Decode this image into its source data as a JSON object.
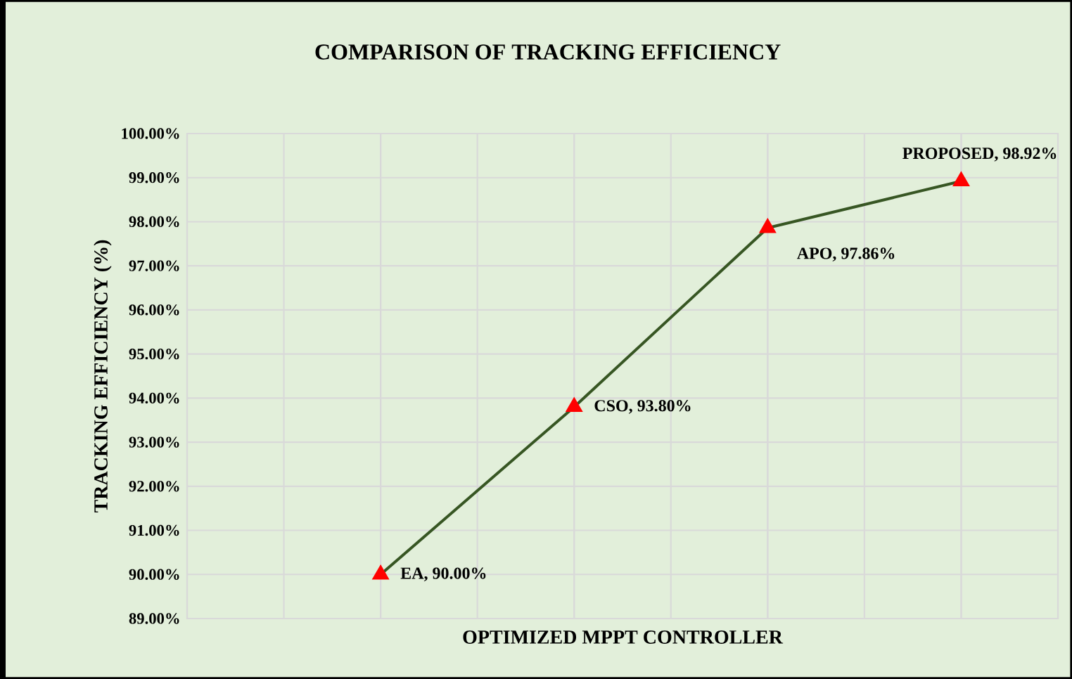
{
  "chart_data": {
    "type": "line",
    "title": "COMPARISON OF TRACKING EFFICIENCY",
    "xlabel": "OPTIMIZED  MPPT CONTROLLER",
    "ylabel": "TRACKING EFFICIENCY (%)",
    "categories": [
      null,
      null,
      null,
      null
    ],
    "series": [
      {
        "color": "#375623",
        "colors": [
          "#ff0000",
          "#ff0000",
          "#ff0000",
          "#ff0000"
        ],
        "values": [
          90.0,
          93.8,
          97.86,
          98.92
        ]
      }
    ],
    "marker": "triangle",
    "line_style": "solid",
    "grid": true,
    "ylim": [
      89,
      100
    ],
    "yticks": [
      {
        "value": 89,
        "label": "89.00%"
      },
      {
        "value": 90,
        "label": "90.00%"
      },
      {
        "value": 91,
        "label": "91.00%"
      },
      {
        "value": 92,
        "label": "92.00%"
      },
      {
        "value": 93,
        "label": "93.00%"
      },
      {
        "value": 94,
        "label": "94.00%"
      },
      {
        "value": 95,
        "label": "95.00%"
      },
      {
        "value": 96,
        "label": "96.00%"
      },
      {
        "value": 97,
        "label": "97.00%"
      },
      {
        "value": 98,
        "label": "98.00%"
      },
      {
        "value": 99,
        "label": "99.00%"
      },
      {
        "value": 100,
        "label": "100.00%"
      }
    ],
    "annotations": [
      "EA, 90.00%",
      "CSO, 93.80%",
      "APO, 97.86%",
      "PROPOSED, 98.92%"
    ]
  }
}
